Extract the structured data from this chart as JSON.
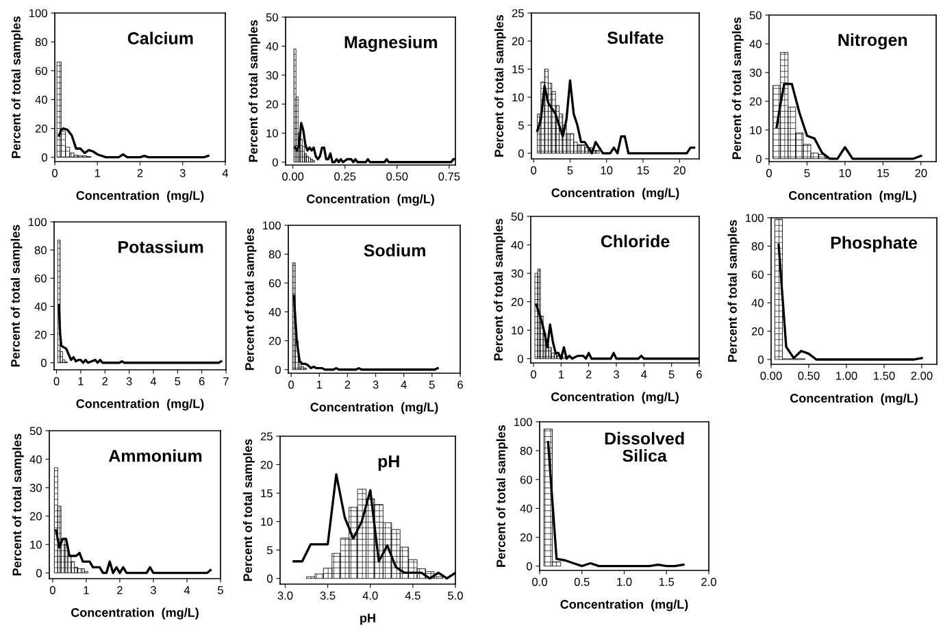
{
  "chart_data": [
    {
      "type": "histogram",
      "title": "Calcium",
      "xlabel": "Concentration  (mg/L)",
      "ylabel": "Percent of total samples",
      "xlim": [
        0,
        4
      ],
      "ylim": [
        -3,
        100
      ],
      "xticks": [
        0,
        1,
        2,
        3,
        4
      ],
      "yticks": [
        0,
        20,
        40,
        60,
        80,
        100
      ],
      "bins": [
        0.05,
        0.15,
        0.25,
        0.35,
        0.45,
        0.55,
        0.65,
        0.75,
        0.85
      ],
      "values": [
        66,
        18,
        7,
        3,
        1.5,
        1,
        1,
        0.5
      ],
      "series": [
        {
          "type": "line",
          "x": [
            0.1,
            0.15,
            0.2,
            0.3,
            0.4,
            0.5,
            0.6,
            0.7,
            0.8,
            0.9,
            1.0,
            1.2,
            1.5,
            1.6,
            1.7,
            2.0,
            2.1,
            2.2,
            3.5,
            3.6
          ],
          "values": [
            15,
            19,
            20,
            19,
            15,
            6,
            6,
            3,
            5,
            4,
            2,
            0,
            0,
            2,
            0,
            0,
            1,
            0,
            0,
            1
          ]
        }
      ]
    },
    {
      "type": "histogram",
      "title": "Magnesium",
      "xlabel": "Concentration  (mg/L)",
      "ylabel": "Percent of total samples",
      "xlim": [
        -0.035,
        0.78
      ],
      "ylim": [
        -1,
        50
      ],
      "xticks": [
        {
          "value": 0,
          "label": "0.00"
        },
        {
          "value": 0.25,
          "label": "0.25"
        },
        {
          "value": 0.5,
          "label": "0.50"
        },
        {
          "value": 0.75,
          "label": "0.75"
        }
      ],
      "yticks": [
        0,
        10,
        20,
        30,
        40,
        50
      ],
      "bins": [
        0.005,
        0.015,
        0.025,
        0.035,
        0.045,
        0.055,
        0.065,
        0.075,
        0.085,
        0.095,
        0.105
      ],
      "values": [
        39,
        22.5,
        10,
        8,
        5.5,
        3,
        2,
        1.5,
        1,
        0.5
      ],
      "series": [
        {
          "type": "line",
          "x": [
            0.01,
            0.02,
            0.03,
            0.04,
            0.05,
            0.06,
            0.07,
            0.08,
            0.09,
            0.1,
            0.11,
            0.12,
            0.13,
            0.14,
            0.15,
            0.16,
            0.17,
            0.18,
            0.19,
            0.2,
            0.21,
            0.22,
            0.23,
            0.24,
            0.26,
            0.28,
            0.29,
            0.3,
            0.31,
            0.35,
            0.36,
            0.37,
            0.44,
            0.45,
            0.46,
            0.76,
            0.77,
            0.78
          ],
          "values": [
            5,
            4,
            6,
            13.5,
            11,
            6,
            4,
            5,
            4,
            5,
            2,
            1,
            2,
            5,
            5,
            1,
            1,
            3,
            0,
            0,
            1,
            0,
            1,
            0,
            1,
            1,
            0,
            1,
            0,
            0,
            1,
            0,
            0,
            1,
            0,
            0,
            1,
            1
          ]
        }
      ]
    },
    {
      "type": "histogram",
      "title": "Sulfate",
      "xlabel": "Concentration  (mg/L)",
      "ylabel": "Percent of total samples",
      "xlim": [
        -0.3,
        22.7
      ],
      "ylim": [
        -1,
        25
      ],
      "xticks": [
        0,
        5,
        10,
        15,
        20
      ],
      "yticks": [
        0,
        5,
        10,
        15,
        20,
        25
      ],
      "bins": [
        0.5,
        1.0,
        1.5,
        2.0,
        2.5,
        3.0,
        3.5,
        4.0,
        4.5,
        5.0,
        5.5,
        6.0,
        6.5,
        7.0,
        7.5,
        8.0,
        8.5,
        9.0
      ],
      "values": [
        7,
        12.7,
        15,
        12.5,
        11,
        8.5,
        7,
        5,
        3.5,
        3.5,
        2,
        1.5,
        1.5,
        1,
        1,
        0.5,
        0.5
      ],
      "series": [
        {
          "type": "line",
          "x": [
            0.5,
            1,
            1.5,
            2,
            2.5,
            3,
            3.5,
            4,
            4.5,
            5,
            5.5,
            6,
            6.5,
            7,
            8,
            8.5,
            9,
            9.5,
            10.5,
            11,
            11.5,
            12,
            12.5,
            13,
            21,
            21.5,
            22
          ],
          "values": [
            4,
            6,
            12,
            9,
            8,
            7,
            5,
            3,
            6,
            13,
            7,
            5,
            2,
            2,
            0,
            2,
            1,
            0,
            0,
            1,
            0,
            3,
            3,
            0,
            0,
            1,
            1
          ]
        }
      ]
    },
    {
      "type": "histogram",
      "title": "Nitrogen",
      "xlabel": "Concentration  (mg/L)",
      "ylabel": "Percent of total samples",
      "xlim": [
        0,
        22
      ],
      "ylim": [
        -1,
        50
      ],
      "xticks": [
        0,
        5,
        10,
        15,
        20
      ],
      "yticks": [
        0,
        10,
        20,
        30,
        40,
        50
      ],
      "bins": [
        0.5,
        1.5,
        2.5,
        3.5,
        4.5,
        5.5,
        6.5,
        7.5,
        8.5
      ],
      "values": [
        25.5,
        37,
        18,
        9,
        5,
        2,
        1.5,
        0.3
      ],
      "series": [
        {
          "type": "line",
          "x": [
            1,
            1.5,
            2,
            3,
            4,
            5,
            6,
            7,
            8,
            9,
            10,
            11,
            19,
            20
          ],
          "values": [
            11,
            19,
            26,
            26,
            16,
            8,
            7,
            2,
            0,
            0,
            4,
            0,
            0,
            1
          ]
        }
      ]
    },
    {
      "type": "histogram",
      "title": "Potassium",
      "xlabel": "Concentration  (mg/L)",
      "ylabel": "Percent of total samples",
      "xlim": [
        -0.1,
        7
      ],
      "ylim": [
        -5,
        100
      ],
      "xticks": [
        0,
        1,
        2,
        3,
        4,
        5,
        6,
        7
      ],
      "yticks": [
        0,
        20,
        40,
        60,
        80,
        100
      ],
      "bins": [
        0.05,
        0.15,
        0.25,
        0.35,
        0.45
      ],
      "values": [
        87,
        8,
        2,
        0.5
      ],
      "series": [
        {
          "type": "line",
          "x": [
            0.1,
            0.15,
            0.2,
            0.3,
            0.4,
            0.5,
            0.6,
            0.7,
            0.8,
            0.9,
            1.0,
            1.1,
            1.2,
            1.3,
            1.6,
            1.7,
            1.8,
            1.9,
            2.6,
            2.7,
            2.8,
            6.7,
            6.8
          ],
          "values": [
            41,
            20,
            12,
            11,
            10,
            6,
            2,
            4,
            1,
            2,
            2,
            0,
            2,
            0,
            2,
            0,
            2,
            0,
            0,
            1,
            0,
            0,
            1
          ]
        }
      ]
    },
    {
      "type": "histogram",
      "title": "Sodium",
      "xlabel": "Concentration  (mg/L)",
      "ylabel": "Percent of total samples",
      "xlim": [
        -0.1,
        6
      ],
      "ylim": [
        -2.5,
        100
      ],
      "xticks": [
        0,
        1,
        2,
        3,
        4,
        5,
        6
      ],
      "yticks": [
        0,
        20,
        40,
        60,
        80,
        100
      ],
      "bins": [
        0.05,
        0.15,
        0.25,
        0.35,
        0.45,
        0.55
      ],
      "values": [
        74,
        20,
        5,
        2,
        1
      ],
      "series": [
        {
          "type": "line",
          "x": [
            0.1,
            0.15,
            0.2,
            0.3,
            0.4,
            0.5,
            0.6,
            0.7,
            0.8,
            0.9,
            1.1,
            1.2,
            1.5,
            1.6,
            1.7,
            2.3,
            2.4,
            2.5,
            5.1,
            5.2
          ],
          "values": [
            51,
            35,
            20,
            6,
            4,
            4,
            3,
            1,
            2,
            1,
            1,
            0,
            0,
            1,
            0,
            0,
            1,
            0,
            0,
            1
          ]
        }
      ]
    },
    {
      "type": "histogram",
      "title": "Chloride",
      "xlabel": "Concentration  (mg/L)",
      "ylabel": "Percent of total samples",
      "xlim": [
        -0.1,
        6
      ],
      "ylim": [
        -1.5,
        50
      ],
      "xticks": [
        0,
        1,
        2,
        3,
        4,
        5,
        6
      ],
      "yticks": [
        0,
        10,
        20,
        30,
        40,
        50
      ],
      "bins": [
        0.05,
        0.15,
        0.25,
        0.35,
        0.45,
        0.55,
        0.65,
        0.75,
        0.85,
        0.95,
        1.05,
        1.15
      ],
      "values": [
        30,
        31.5,
        15,
        9,
        5,
        4,
        2,
        1.5,
        1,
        1,
        0.5
      ],
      "series": [
        {
          "type": "line",
          "x": [
            0.1,
            0.2,
            0.3,
            0.4,
            0.5,
            0.6,
            0.7,
            0.8,
            0.9,
            1.0,
            1.1,
            1.2,
            1.3,
            1.4,
            1.6,
            1.8,
            1.9,
            2.0,
            2.1,
            2.8,
            2.9,
            3.0,
            3.8,
            3.9,
            4.0,
            6.0
          ],
          "values": [
            19,
            16,
            13,
            9,
            4,
            12,
            6,
            2,
            2,
            0,
            4,
            0,
            1,
            0,
            1,
            1,
            0,
            2,
            0,
            0,
            2,
            0,
            0,
            1,
            0,
            0
          ]
        }
      ]
    },
    {
      "type": "histogram",
      "title": "Phosphate",
      "xlabel": "Concentration  (mg/L)",
      "ylabel": "Percent of total samples",
      "xlim": [
        0,
        2.2
      ],
      "ylim": [
        -3.4,
        100
      ],
      "xticks": [
        {
          "value": 0,
          "label": "0.00"
        },
        {
          "value": 0.5,
          "label": "0.50"
        },
        {
          "value": 1,
          "label": "1.00"
        },
        {
          "value": 1.5,
          "label": "1.50"
        },
        {
          "value": 2,
          "label": "2.00"
        }
      ],
      "yticks": [
        0,
        20,
        40,
        60,
        80,
        100
      ],
      "bins": [
        0.05,
        0.15,
        0.25,
        0.35,
        0.45
      ],
      "values": [
        99,
        0.5,
        0.5,
        0.5
      ],
      "series": [
        {
          "type": "line",
          "x": [
            0.1,
            0.2,
            0.3,
            0.4,
            0.5,
            0.6,
            1.9,
            2.0
          ],
          "values": [
            81,
            9,
            1,
            6,
            4,
            0,
            0,
            1
          ]
        }
      ]
    },
    {
      "type": "histogram",
      "title": "Ammonium",
      "xlabel": "Concentration  (mg/L)",
      "ylabel": "Percent of total samples",
      "xlim": [
        -0.1,
        5
      ],
      "ylim": [
        -2,
        50
      ],
      "xticks": [
        0,
        1,
        2,
        3,
        4,
        5
      ],
      "yticks": [
        0,
        10,
        20,
        30,
        40,
        50
      ],
      "bins": [
        0.05,
        0.15,
        0.25,
        0.35,
        0.45,
        0.55,
        0.65,
        0.75,
        0.85,
        0.95,
        1.05
      ],
      "values": [
        37,
        23.5,
        12,
        10,
        6,
        4,
        2,
        1.5,
        1.5,
        0.5
      ],
      "series": [
        {
          "type": "line",
          "x": [
            0.1,
            0.2,
            0.3,
            0.4,
            0.5,
            0.6,
            0.7,
            0.8,
            0.9,
            1.0,
            1.1,
            1.2,
            1.3,
            1.4,
            1.5,
            1.6,
            1.7,
            1.8,
            1.9,
            2.0,
            2.1,
            2.2,
            2.8,
            2.9,
            3.0,
            4.6,
            4.7
          ],
          "values": [
            15,
            9,
            12,
            12,
            6,
            6,
            6,
            7,
            4,
            4,
            4,
            2,
            2,
            2,
            0,
            0,
            4,
            0,
            2,
            0,
            2,
            0,
            0,
            2,
            0,
            0,
            1
          ]
        }
      ]
    },
    {
      "type": "histogram",
      "title": "pH",
      "xlabel": "pH",
      "ylabel": "Percent of total samples",
      "xlim": [
        2.94,
        5.0
      ],
      "ylim": [
        -1,
        25
      ],
      "xticks": [
        {
          "value": 3,
          "label": "3.0"
        },
        {
          "value": 3.5,
          "label": "3.5"
        },
        {
          "value": 4,
          "label": "4.0"
        },
        {
          "value": 4.5,
          "label": "4.5"
        },
        {
          "value": 5,
          "label": "5.0"
        }
      ],
      "yticks": [
        0,
        5,
        10,
        15,
        20,
        25
      ],
      "bins": [
        3.25,
        3.35,
        3.45,
        3.55,
        3.65,
        3.75,
        3.85,
        3.95,
        4.05,
        4.15,
        4.25,
        4.35,
        4.45,
        4.55,
        4.65,
        4.75,
        4.85
      ],
      "values": [
        0.3,
        0.8,
        1.8,
        4.4,
        7.1,
        12.5,
        15.7,
        14,
        13,
        9.8,
        8.6,
        5.5,
        3.3,
        1.7,
        1.2,
        0.3
      ],
      "series": [
        {
          "type": "line",
          "x": [
            3.1,
            3.2,
            3.3,
            3.4,
            3.5,
            3.6,
            3.7,
            3.8,
            3.9,
            4.0,
            4.1,
            4.2,
            4.3,
            4.4,
            4.5,
            4.6,
            4.7,
            4.8,
            4.9,
            5.0
          ],
          "values": [
            3,
            3,
            6,
            6,
            6,
            18.3,
            10.7,
            7,
            10,
            15.5,
            3,
            5.8,
            2,
            1,
            1,
            1,
            0,
            1,
            0,
            1
          ]
        }
      ]
    },
    {
      "type": "histogram",
      "title": "Dissolved\nSilica",
      "xlabel": "Concentration  (mg/L)",
      "ylabel": "Percent of total samples",
      "xlim": [
        0,
        2
      ],
      "ylim": [
        -3,
        100
      ],
      "xticks": [
        {
          "value": 0,
          "label": "0.0"
        },
        {
          "value": 0.5,
          "label": "0.5"
        },
        {
          "value": 1,
          "label": "1.0"
        },
        {
          "value": 1.5,
          "label": "1.5"
        },
        {
          "value": 2,
          "label": "2.0"
        }
      ],
      "yticks": [
        0,
        20,
        40,
        60,
        80,
        100
      ],
      "bins": [
        0.05,
        0.15,
        0.25
      ],
      "values": [
        95,
        3
      ],
      "series": [
        {
          "type": "line",
          "x": [
            0.1,
            0.2,
            0.3,
            0.4,
            0.5,
            0.6,
            0.7,
            1.3,
            1.4,
            1.5,
            1.6,
            1.7
          ],
          "values": [
            86,
            5,
            4,
            2,
            0,
            2,
            0,
            0,
            1,
            0,
            0,
            1
          ]
        }
      ]
    }
  ]
}
